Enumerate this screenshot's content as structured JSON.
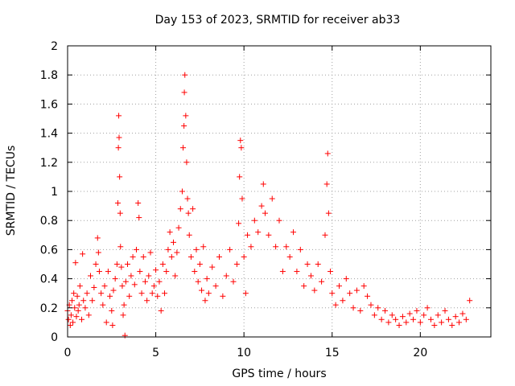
{
  "chart_data": {
    "type": "scatter",
    "title": "Day 153 of 2023, SRMTID for receiver ab33",
    "xlabel": "GPS time / hours",
    "ylabel": "SRMTID / TECUs",
    "xlim": [
      0,
      24
    ],
    "ylim": [
      0,
      2
    ],
    "grid": true,
    "marker": "+",
    "color": "#ff0000",
    "x_ticks": [
      0,
      5,
      10,
      15,
      20
    ],
    "x_tick_labels": [
      "0",
      "5",
      "10",
      "15",
      "20"
    ],
    "y_ticks": [
      0,
      0.2,
      0.4,
      0.6,
      0.8,
      1,
      1.2,
      1.4,
      1.6,
      1.8,
      2
    ],
    "y_tick_labels": [
      "0",
      "0.2",
      "0.4",
      "0.6",
      "0.8",
      "1",
      "1.2",
      "1.4",
      "1.6",
      "1.8",
      "2"
    ],
    "series": [
      {
        "name": "ab33",
        "points": [
          [
            0.0,
            0.18
          ],
          [
            0.05,
            0.12
          ],
          [
            0.1,
            0.22
          ],
          [
            0.15,
            0.08
          ],
          [
            0.2,
            0.15
          ],
          [
            0.25,
            0.25
          ],
          [
            0.3,
            0.1
          ],
          [
            0.35,
            0.3
          ],
          [
            0.4,
            0.2
          ],
          [
            0.45,
            0.51
          ],
          [
            0.5,
            0.14
          ],
          [
            0.55,
            0.28
          ],
          [
            0.6,
            0.18
          ],
          [
            0.65,
            0.22
          ],
          [
            0.7,
            0.35
          ],
          [
            0.8,
            0.12
          ],
          [
            0.85,
            0.57
          ],
          [
            0.9,
            0.25
          ],
          [
            1.0,
            0.2
          ],
          [
            1.1,
            0.3
          ],
          [
            1.2,
            0.15
          ],
          [
            1.3,
            0.42
          ],
          [
            1.4,
            0.25
          ],
          [
            1.5,
            0.34
          ],
          [
            1.6,
            0.5
          ],
          [
            1.7,
            0.68
          ],
          [
            1.75,
            0.58
          ],
          [
            1.8,
            0.45
          ],
          [
            1.9,
            0.3
          ],
          [
            2.0,
            0.22
          ],
          [
            2.1,
            0.35
          ],
          [
            2.2,
            0.1
          ],
          [
            2.3,
            0.45
          ],
          [
            2.4,
            0.28
          ],
          [
            2.5,
            0.18
          ],
          [
            2.55,
            0.08
          ],
          [
            2.6,
            0.32
          ],
          [
            2.7,
            0.4
          ],
          [
            2.8,
            0.5
          ],
          [
            2.85,
            0.92
          ],
          [
            2.88,
            1.3
          ],
          [
            2.9,
            1.52
          ],
          [
            2.92,
            1.37
          ],
          [
            2.95,
            1.1
          ],
          [
            2.98,
            0.85
          ],
          [
            3.0,
            0.62
          ],
          [
            3.05,
            0.48
          ],
          [
            3.1,
            0.35
          ],
          [
            3.15,
            0.15
          ],
          [
            3.2,
            0.22
          ],
          [
            3.25,
            0.01
          ],
          [
            3.3,
            0.38
          ],
          [
            3.4,
            0.5
          ],
          [
            3.5,
            0.28
          ],
          [
            3.6,
            0.42
          ],
          [
            3.7,
            0.55
          ],
          [
            3.8,
            0.36
          ],
          [
            3.9,
            0.6
          ],
          [
            4.0,
            0.92
          ],
          [
            4.05,
            0.82
          ],
          [
            4.1,
            0.45
          ],
          [
            4.2,
            0.3
          ],
          [
            4.3,
            0.55
          ],
          [
            4.4,
            0.38
          ],
          [
            4.5,
            0.25
          ],
          [
            4.6,
            0.42
          ],
          [
            4.7,
            0.58
          ],
          [
            4.8,
            0.3
          ],
          [
            4.9,
            0.35
          ],
          [
            5.0,
            0.46
          ],
          [
            5.1,
            0.28
          ],
          [
            5.2,
            0.38
          ],
          [
            5.3,
            0.18
          ],
          [
            5.4,
            0.5
          ],
          [
            5.5,
            0.3
          ],
          [
            5.6,
            0.45
          ],
          [
            5.7,
            0.6
          ],
          [
            5.8,
            0.72
          ],
          [
            5.9,
            0.55
          ],
          [
            6.0,
            0.65
          ],
          [
            6.1,
            0.42
          ],
          [
            6.2,
            0.58
          ],
          [
            6.3,
            0.75
          ],
          [
            6.4,
            0.88
          ],
          [
            6.5,
            1.0
          ],
          [
            6.55,
            1.3
          ],
          [
            6.6,
            1.45
          ],
          [
            6.62,
            1.68
          ],
          [
            6.65,
            1.8
          ],
          [
            6.7,
            1.52
          ],
          [
            6.75,
            1.2
          ],
          [
            6.8,
            0.95
          ],
          [
            6.85,
            0.85
          ],
          [
            6.9,
            0.7
          ],
          [
            7.0,
            0.55
          ],
          [
            7.1,
            0.88
          ],
          [
            7.2,
            0.45
          ],
          [
            7.3,
            0.6
          ],
          [
            7.4,
            0.38
          ],
          [
            7.5,
            0.5
          ],
          [
            7.6,
            0.32
          ],
          [
            7.7,
            0.62
          ],
          [
            7.8,
            0.25
          ],
          [
            7.9,
            0.4
          ],
          [
            8.0,
            0.3
          ],
          [
            8.2,
            0.48
          ],
          [
            8.4,
            0.35
          ],
          [
            8.6,
            0.55
          ],
          [
            8.8,
            0.28
          ],
          [
            9.0,
            0.42
          ],
          [
            9.2,
            0.6
          ],
          [
            9.4,
            0.38
          ],
          [
            9.6,
            0.5
          ],
          [
            9.7,
            0.78
          ],
          [
            9.75,
            1.1
          ],
          [
            9.8,
            1.35
          ],
          [
            9.85,
            1.3
          ],
          [
            9.9,
            0.95
          ],
          [
            10.0,
            0.55
          ],
          [
            10.1,
            0.3
          ],
          [
            10.2,
            0.7
          ],
          [
            10.4,
            0.62
          ],
          [
            10.6,
            0.8
          ],
          [
            10.8,
            0.72
          ],
          [
            11.0,
            0.9
          ],
          [
            11.1,
            1.05
          ],
          [
            11.2,
            0.85
          ],
          [
            11.4,
            0.7
          ],
          [
            11.6,
            0.95
          ],
          [
            11.8,
            0.62
          ],
          [
            12.0,
            0.8
          ],
          [
            12.2,
            0.45
          ],
          [
            12.4,
            0.62
          ],
          [
            12.6,
            0.55
          ],
          [
            12.8,
            0.72
          ],
          [
            13.0,
            0.45
          ],
          [
            13.2,
            0.6
          ],
          [
            13.4,
            0.35
          ],
          [
            13.6,
            0.5
          ],
          [
            13.8,
            0.42
          ],
          [
            14.0,
            0.32
          ],
          [
            14.2,
            0.5
          ],
          [
            14.4,
            0.38
          ],
          [
            14.6,
            0.7
          ],
          [
            14.7,
            1.05
          ],
          [
            14.75,
            1.26
          ],
          [
            14.8,
            0.85
          ],
          [
            14.9,
            0.45
          ],
          [
            15.0,
            0.3
          ],
          [
            15.2,
            0.22
          ],
          [
            15.4,
            0.35
          ],
          [
            15.6,
            0.25
          ],
          [
            15.8,
            0.4
          ],
          [
            16.0,
            0.3
          ],
          [
            16.2,
            0.2
          ],
          [
            16.4,
            0.32
          ],
          [
            16.6,
            0.18
          ],
          [
            16.8,
            0.35
          ],
          [
            17.0,
            0.28
          ],
          [
            17.2,
            0.22
          ],
          [
            17.4,
            0.15
          ],
          [
            17.6,
            0.2
          ],
          [
            17.8,
            0.12
          ],
          [
            18.0,
            0.18
          ],
          [
            18.2,
            0.1
          ],
          [
            18.4,
            0.15
          ],
          [
            18.6,
            0.12
          ],
          [
            18.8,
            0.08
          ],
          [
            19.0,
            0.14
          ],
          [
            19.2,
            0.1
          ],
          [
            19.4,
            0.16
          ],
          [
            19.6,
            0.12
          ],
          [
            19.8,
            0.18
          ],
          [
            20.0,
            0.1
          ],
          [
            20.2,
            0.15
          ],
          [
            20.4,
            0.2
          ],
          [
            20.6,
            0.12
          ],
          [
            20.8,
            0.08
          ],
          [
            21.0,
            0.15
          ],
          [
            21.2,
            0.1
          ],
          [
            21.4,
            0.18
          ],
          [
            21.6,
            0.12
          ],
          [
            21.8,
            0.08
          ],
          [
            22.0,
            0.14
          ],
          [
            22.2,
            0.1
          ],
          [
            22.4,
            0.16
          ],
          [
            22.6,
            0.12
          ],
          [
            22.8,
            0.25
          ]
        ]
      }
    ]
  }
}
